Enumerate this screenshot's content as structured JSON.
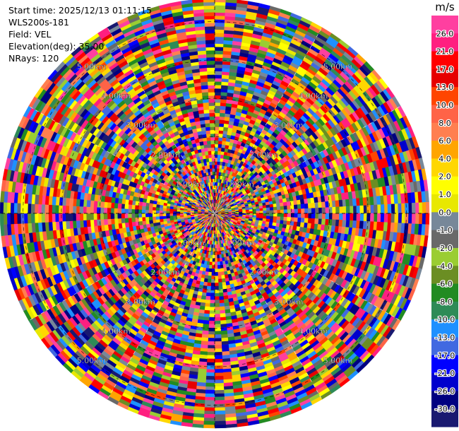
{
  "header": {
    "start_time": "Start time: 2025/12/13 01:11:15",
    "station": "WLS200s-181",
    "field": "Field: VEL",
    "elevation": "Elevation(deg): 35.00",
    "nrays": "NRays: 120"
  },
  "colorbar": {
    "unit": "m/s",
    "ticks": [
      "26.0",
      "21.0",
      "17.0",
      "13.0",
      "10.0",
      "8.0",
      "6.0",
      "4.0",
      "2.0",
      "1.0",
      "0.0",
      "-1.0",
      "-2.0",
      "-4.0",
      "-6.0",
      "-8.0",
      "-10.0",
      "-13.0",
      "-17.0",
      "-21.0",
      "-26.0",
      "-30.0"
    ],
    "colors": [
      "#ff3fa0",
      "#ff1f80",
      "#ff0000",
      "#e60000",
      "#ff4500",
      "#ff6347",
      "#ff7f50",
      "#ffa500",
      "#ffd700",
      "#ffff00",
      "#e8e800",
      "#778899",
      "#696969",
      "#9acd32",
      "#6b8e23",
      "#228b22",
      "#2e8b57",
      "#1e90ff",
      "#4169e1",
      "#0000ff",
      "#0000cd",
      "#000080",
      "#191970"
    ]
  },
  "chart_data": {
    "type": "heatmap",
    "projection": "polar-ppi",
    "field": "VEL",
    "unit": "m/s",
    "nrays": 120,
    "range_rings_km": [
      1.0,
      2.0,
      3.0,
      4.0,
      5.0
    ],
    "ring_labels": [
      "1.00km",
      "2.00km",
      "3.00km",
      "4.00km",
      "5.00km"
    ],
    "color_levels": [
      -30.0,
      -26.0,
      -21.0,
      -17.0,
      -13.0,
      -10.0,
      -8.0,
      -6.0,
      -4.0,
      -2.0,
      -1.0,
      0.0,
      1.0,
      2.0,
      4.0,
      6.0,
      8.0,
      10.0,
      13.0,
      17.0,
      21.0,
      26.0
    ],
    "max_range_km": 5.6
  }
}
